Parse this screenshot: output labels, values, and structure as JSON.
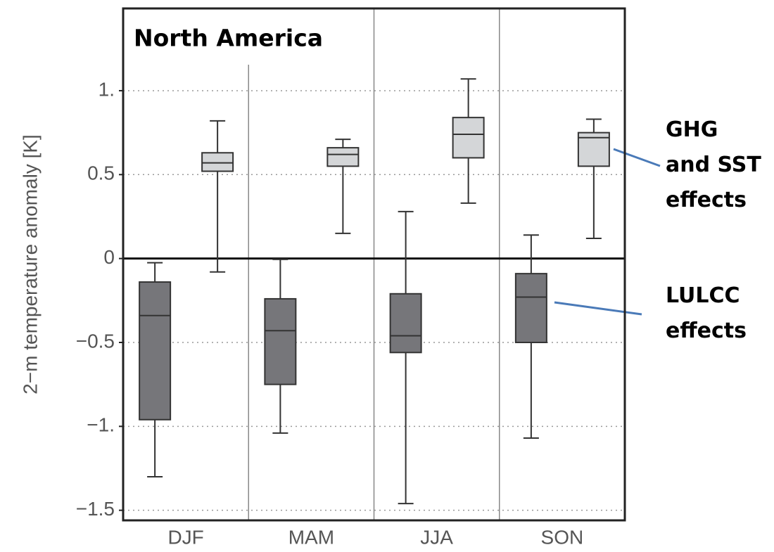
{
  "chart_data": {
    "type": "box",
    "title": "North America",
    "y_label": "2−m temperature anomaly  [K]",
    "categories": [
      "DJF",
      "MAM",
      "JJA",
      "SON"
    ],
    "ylim": [
      -1.56,
      1.49
    ],
    "yticks": [
      {
        "value": -1.5,
        "label": "−1.5"
      },
      {
        "value": -1,
        "label": "−1."
      },
      {
        "value": -0.5,
        "label": "−0.5"
      },
      0,
      0.5,
      {
        "value": 1,
        "label": "1."
      }
    ],
    "grid": true,
    "series": [
      {
        "name": "LULCC\neffects",
        "color": "#76767a",
        "whislo": [
          -1.3,
          -1.04,
          -1.46,
          -1.07
        ],
        "q1": [
          -0.96,
          -0.75,
          -0.56,
          -0.5
        ],
        "median": [
          -0.34,
          -0.43,
          -0.46,
          -0.23
        ],
        "q3": [
          -0.14,
          -0.24,
          -0.21,
          -0.09
        ],
        "whishi": [
          -0.025,
          -0.005,
          0.28,
          0.14
        ]
      },
      {
        "name": "GHG\nand SST\neffects",
        "color": "#d4d6d8",
        "whislo": [
          -0.08,
          0.15,
          0.33,
          0.12
        ],
        "q1": [
          0.52,
          0.55,
          0.6,
          0.55
        ],
        "median": [
          0.57,
          0.62,
          0.74,
          0.72
        ],
        "q3": [
          0.63,
          0.66,
          0.84,
          0.75
        ],
        "whishi": [
          0.82,
          0.71,
          1.07,
          0.83
        ]
      }
    ]
  }
}
